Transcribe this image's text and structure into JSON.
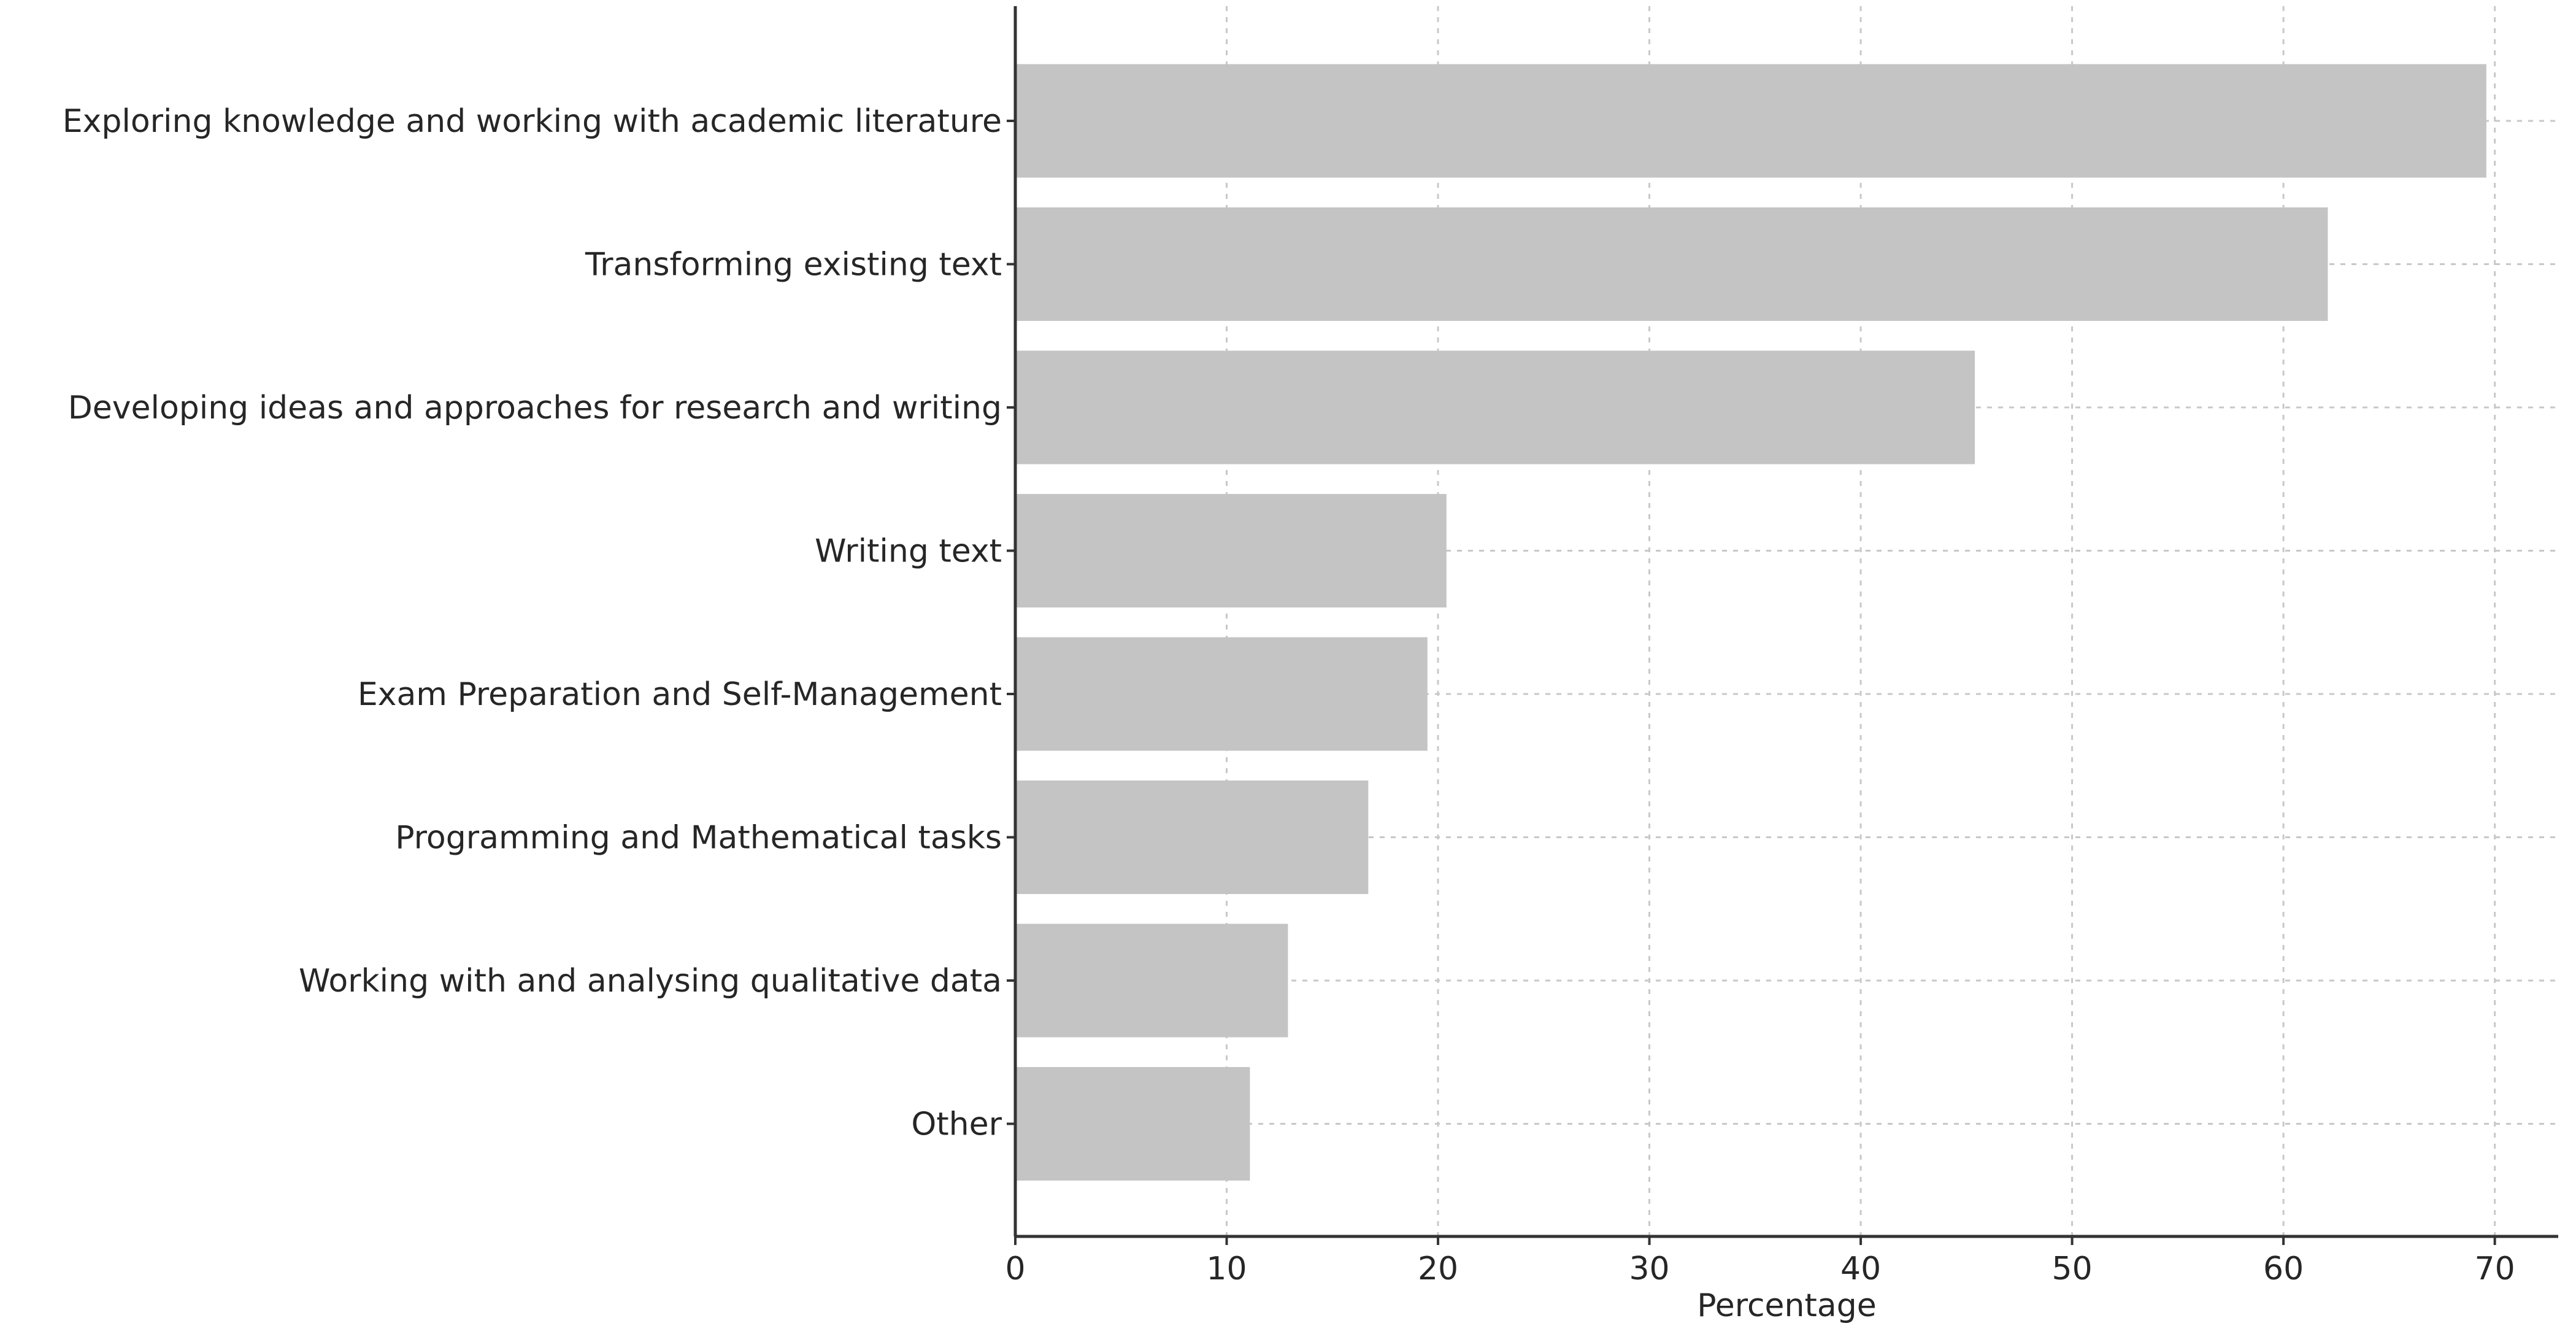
{
  "chart_data": {
    "type": "bar",
    "orientation": "horizontal",
    "categories": [
      "Exploring knowledge and working with academic literature",
      "Transforming existing text",
      "Developing ideas and approaches for research and writing",
      "Writing text",
      "Exam Preparation and Self-Management",
      "Programming and Mathematical tasks",
      "Working with and analysing qualitative data",
      "Other"
    ],
    "values": [
      69.6,
      62.1,
      45.4,
      20.4,
      19.5,
      16.7,
      12.9,
      11.1
    ],
    "xlabel": "Percentage",
    "ylabel": "",
    "xlim": [
      0,
      73
    ],
    "xticks": [
      0,
      10,
      20,
      30,
      40,
      50,
      60,
      70
    ],
    "grid": true,
    "bar_color": "#c4c4c4"
  }
}
